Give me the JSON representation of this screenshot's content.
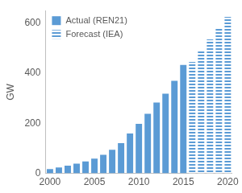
{
  "chart_data": {
    "type": "bar",
    "categories": [
      "2000",
      null,
      null,
      null,
      null,
      "2005",
      null,
      null,
      null,
      null,
      "2010",
      null,
      null,
      null,
      null,
      "2015",
      null,
      null,
      null,
      null,
      "2020"
    ],
    "y_label": "GW",
    "series": [
      {
        "name": "Actual (REN21)",
        "color": "#5b9bd5",
        "values": [
          17,
          24,
          31,
          39,
          48,
          59,
          74,
          94,
          121,
          159,
          198,
          238,
          283,
          318,
          370,
          433,
          null,
          null,
          null,
          null,
          null
        ]
      },
      {
        "name": "Forecast (IEA)",
        "color": "#5b9bd5",
        "line_style": "dashed",
        "values": [
          null,
          null,
          null,
          null,
          null,
          null,
          null,
          null,
          null,
          null,
          null,
          null,
          null,
          null,
          null,
          null,
          445,
          490,
          535,
          580,
          625
        ]
      }
    ],
    "ylim": [
      0,
      650
    ],
    "yticks": [
      0,
      200,
      400,
      600
    ],
    "grid": false,
    "legend": "upper left"
  }
}
